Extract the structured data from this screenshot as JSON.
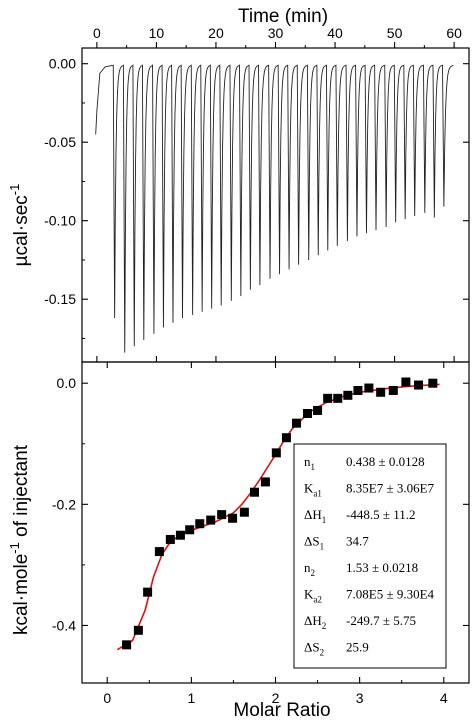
{
  "chart_data": [
    {
      "type": "line",
      "title": "",
      "xlabel": "Time (min)",
      "ylabel": "µcal·sec",
      "ylabel_exp": "-1",
      "xlim": [
        -2.5,
        62.5
      ],
      "ylim": [
        -0.19,
        0.01
      ],
      "x_ticks": [
        0,
        10,
        20,
        30,
        40,
        50,
        60
      ],
      "y_ticks": [
        0.0,
        -0.05,
        -0.1,
        -0.15
      ],
      "y_tick_labels": [
        "0.00",
        "-0.05",
        "-0.10",
        "-0.15"
      ],
      "baseline": 0.0,
      "series": [
        {
          "injection_times_min": [
            0.0,
            2.8,
            4.5,
            6.1,
            7.7,
            9.4,
            11.0,
            12.6,
            14.2,
            15.9,
            17.5,
            19.1,
            20.7,
            22.4,
            24.0,
            25.6,
            27.2,
            28.9,
            30.5,
            32.1,
            33.7,
            35.4,
            37.0,
            38.6,
            40.2,
            41.9,
            43.5,
            45.1,
            46.7,
            48.4,
            50.0,
            51.6,
            53.2,
            54.9,
            56.5,
            58.1
          ],
          "peak_heights": [
            -0.04,
            -0.162,
            -0.184,
            -0.18,
            -0.176,
            -0.172,
            -0.168,
            -0.165,
            -0.162,
            -0.16,
            -0.158,
            -0.156,
            -0.154,
            -0.151,
            -0.148,
            -0.144,
            -0.141,
            -0.137,
            -0.134,
            -0.131,
            -0.128,
            -0.125,
            -0.122,
            -0.119,
            -0.116,
            -0.113,
            -0.11,
            -0.108,
            -0.106,
            -0.104,
            -0.101,
            -0.099,
            -0.097,
            -0.095,
            -0.098,
            -0.091
          ]
        }
      ]
    },
    {
      "type": "scatter",
      "title": "",
      "xlabel": "Molar Ratio",
      "ylabel": "kcal·mole",
      "ylabel_exp": "-1",
      "ylabel_suffix": " of injectant",
      "xlim": [
        -0.3,
        4.3
      ],
      "ylim": [
        -0.495,
        0.035
      ],
      "x_ticks": [
        0,
        1,
        2,
        3,
        4
      ],
      "y_ticks": [
        0.0,
        -0.2,
        -0.4
      ],
      "y_tick_labels": [
        "0.0",
        "-0.2",
        "-0.4"
      ],
      "series": [
        {
          "marker": "square",
          "x": [
            0.23,
            0.37,
            0.48,
            0.62,
            0.75,
            0.87,
            0.98,
            1.1,
            1.23,
            1.36,
            1.49,
            1.63,
            1.75,
            1.88,
            2.01,
            2.13,
            2.25,
            2.38,
            2.5,
            2.62,
            2.74,
            2.86,
            2.98,
            3.11,
            3.25,
            3.4,
            3.55,
            3.7,
            3.87
          ],
          "y": [
            -0.432,
            -0.408,
            -0.345,
            -0.278,
            -0.258,
            -0.251,
            -0.242,
            -0.232,
            -0.226,
            -0.217,
            -0.223,
            -0.213,
            -0.18,
            -0.163,
            -0.115,
            -0.09,
            -0.066,
            -0.05,
            -0.045,
            -0.025,
            -0.025,
            -0.02,
            -0.012,
            -0.008,
            -0.015,
            -0.012,
            0.002,
            -0.003,
            0.0
          ]
        },
        {
          "line_color": "#e01010",
          "x": [
            0.12,
            0.3,
            0.45,
            0.55,
            0.65,
            0.75,
            0.9,
            1.1,
            1.3,
            1.5,
            1.6,
            1.7,
            1.8,
            1.9,
            2.0,
            2.1,
            2.2,
            2.4,
            2.6,
            2.8,
            3.0,
            3.3,
            3.6,
            3.95
          ],
          "y": [
            -0.44,
            -0.425,
            -0.375,
            -0.32,
            -0.283,
            -0.262,
            -0.248,
            -0.238,
            -0.228,
            -0.214,
            -0.2,
            -0.182,
            -0.162,
            -0.14,
            -0.118,
            -0.095,
            -0.075,
            -0.048,
            -0.032,
            -0.022,
            -0.015,
            -0.009,
            -0.005,
            -0.002
          ]
        }
      ],
      "annotation": [
        {
          "label": "n",
          "sub": "1",
          "value": "0.438 ± 0.0128"
        },
        {
          "label": "K",
          "sub": "a1",
          "value": "8.35E7 ± 3.06E7"
        },
        {
          "label": "ΔH",
          "sub": "1",
          "value": "-448.5 ± 11.2"
        },
        {
          "label": "ΔS",
          "sub": "1",
          "value": "34.7"
        },
        {
          "label": "n",
          "sub": "2",
          "value": "1.53 ± 0.0218"
        },
        {
          "label": "K",
          "sub": "a2",
          "value": "7.08E5 ± 9.30E4"
        },
        {
          "label": "ΔH",
          "sub": "2",
          "value": "-249.7 ± 5.75"
        },
        {
          "label": "ΔS",
          "sub": "2",
          "value": "25.9"
        }
      ]
    }
  ]
}
